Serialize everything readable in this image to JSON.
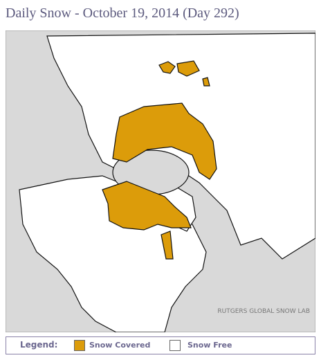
{
  "header": {
    "title": "Daily Snow - October 19, 2014 (Day 292)"
  },
  "map": {
    "credit": "RUTGERS GLOBAL SNOW LAB"
  },
  "legend": {
    "title": "Legend:",
    "items": [
      {
        "label": "Snow Covered",
        "color": "#dc9c0a"
      },
      {
        "label": "Snow Free",
        "color": "#ffffff"
      }
    ]
  }
}
